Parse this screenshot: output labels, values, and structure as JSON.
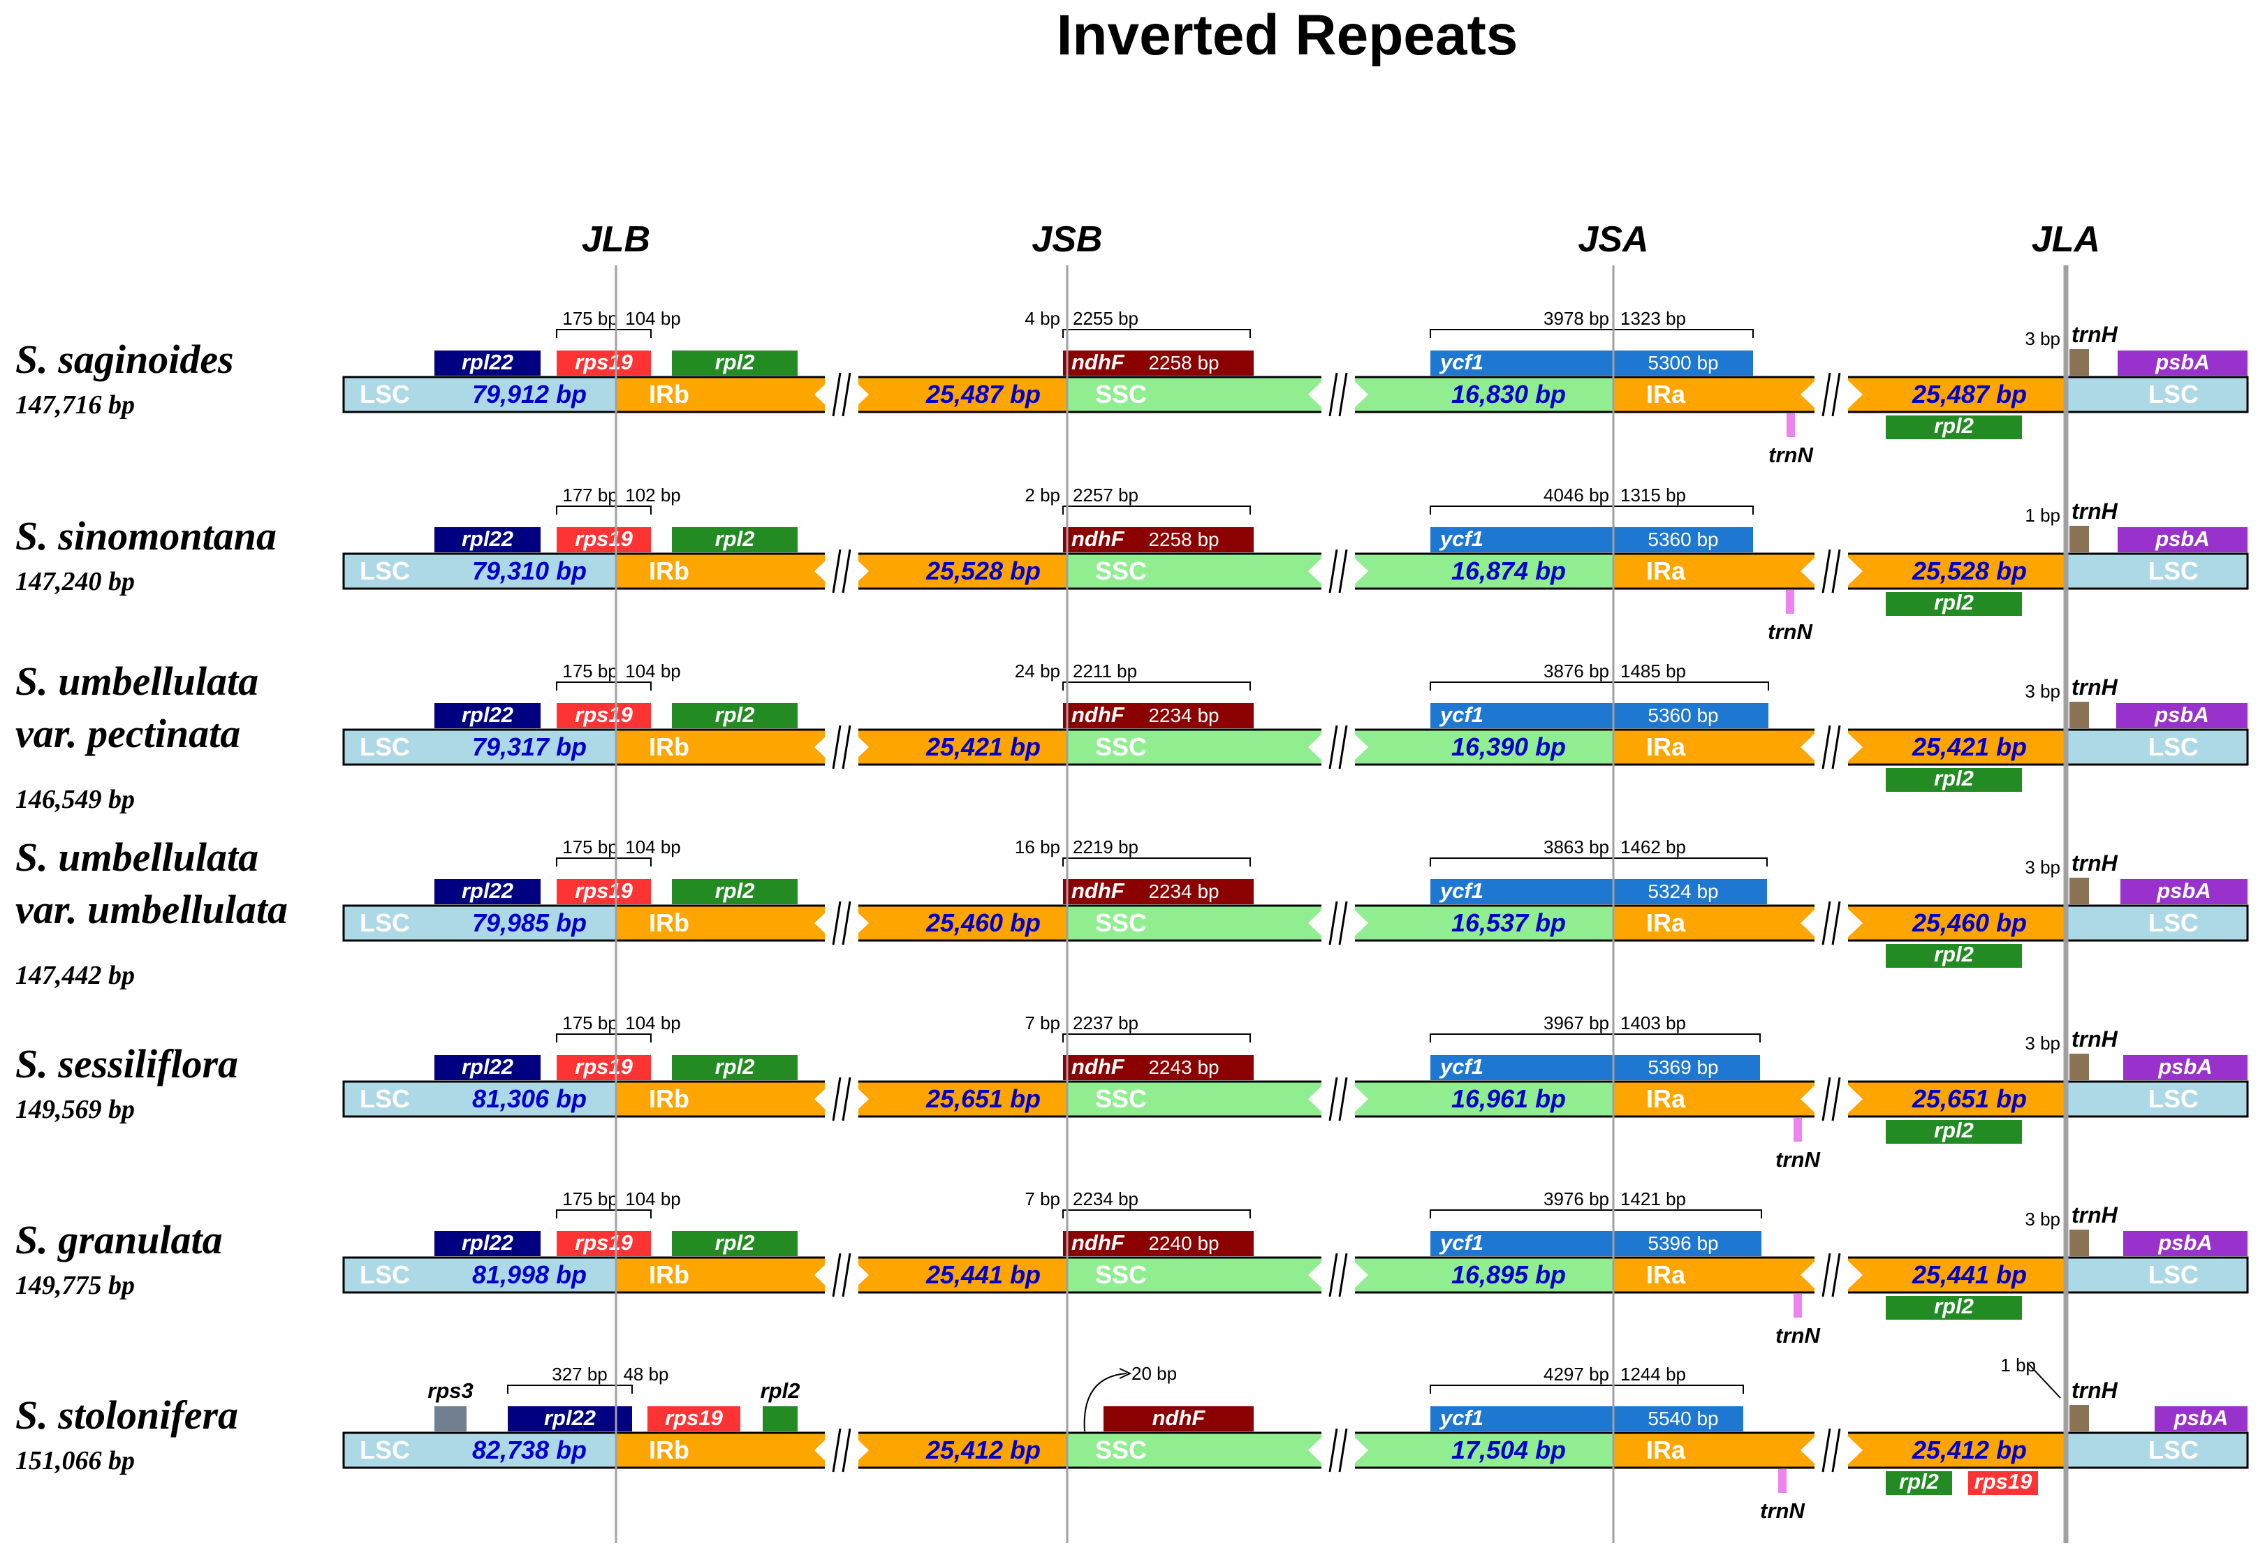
{
  "title": "Inverted Repeats",
  "junctions": [
    "JLB",
    "JSB",
    "JSA",
    "JLA"
  ],
  "colors": {
    "LSC": "#add8e6",
    "IR": "#ffa500",
    "SSC": "#90ee90",
    "rpl22": "#000080",
    "rps19": "#ff3333",
    "rpl2": "#228b22",
    "ndhF": "#8b0000",
    "ycf1": "#1e78d2",
    "trnH": "#8b7355",
    "psbA": "#9932cc",
    "trnN": "#ee82ee",
    "rps3": "#708090",
    "sizeText": "#0000cc"
  },
  "rows": [
    {
      "species": [
        "S. saginoides"
      ],
      "genome": "147,716 bp",
      "lsc": "79,912 bp",
      "irb": "25,487 bp",
      "ssc": "16,830 bp",
      "ira": "25,487 bp",
      "seg_labels": [
        "LSC",
        "IRb",
        "SSC",
        "IRa",
        "LSC"
      ],
      "jlb": {
        "left": "175 bp",
        "right": "104 bp",
        "genes": [
          "rpl22",
          "rps19",
          "rpl2"
        ]
      },
      "jsb": {
        "left": "4 bp",
        "right": "2255 bp",
        "gene": "ndhF",
        "size": "2258 bp"
      },
      "jsa": {
        "left": "3978 bp",
        "right": "1323 bp",
        "gene": "ycf1",
        "size": "5300 bp",
        "trn": "trnN"
      },
      "jla": {
        "dist": "3 bp",
        "genes": [
          "trnH",
          "psbA",
          "rpl2"
        ]
      }
    },
    {
      "species": [
        "S. sinomontana"
      ],
      "genome": "147,240 bp",
      "lsc": "79,310 bp",
      "irb": "25,528 bp",
      "ssc": "16,874 bp",
      "ira": "25,528 bp",
      "seg_labels": [
        "LSC",
        "IRb",
        "SSC",
        "IRa",
        "LSC"
      ],
      "jlb": {
        "left": "177 bp",
        "right": "102 bp",
        "genes": [
          "rpl22",
          "rps19",
          "rpl2"
        ]
      },
      "jsb": {
        "left": "2 bp",
        "right": "2257 bp",
        "gene": "ndhF",
        "size": "2258 bp"
      },
      "jsa": {
        "left": "4046 bp",
        "right": "1315 bp",
        "gene": "ycf1",
        "size": "5360 bp",
        "trn": "trnN"
      },
      "jla": {
        "dist": "1 bp",
        "genes": [
          "trnH",
          "psbA",
          "rpl2"
        ]
      }
    },
    {
      "species": [
        "S. umbellulata",
        "var. pectinata"
      ],
      "genome": "146,549 bp",
      "lsc": "79,317 bp",
      "irb": "25,421 bp",
      "ssc": "16,390 bp",
      "ira": "25,421 bp",
      "seg_labels": [
        "LSC",
        "IRb",
        "SSC",
        "IRa",
        "LSC"
      ],
      "jlb": {
        "left": "175 bp",
        "right": "104 bp",
        "genes": [
          "rpl22",
          "rps19",
          "rpl2"
        ]
      },
      "jsb": {
        "left": "24 bp",
        "right": "2211 bp",
        "gene": "ndhF",
        "size": "2234 bp"
      },
      "jsa": {
        "left": "3876 bp",
        "right": "1485 bp",
        "gene": "ycf1",
        "size": "5360 bp"
      },
      "jla": {
        "dist": "3 bp",
        "genes": [
          "trnH",
          "psbA",
          "rpl2"
        ]
      }
    },
    {
      "species": [
        "S. umbellulata",
        "var. umbellulata"
      ],
      "genome": "147,442 bp",
      "lsc": "79,985 bp",
      "irb": "25,460 bp",
      "ssc": "16,537 bp",
      "ira": "25,460 bp",
      "seg_labels": [
        "LSC",
        "IRb",
        "SSC",
        "IRa",
        "LSC"
      ],
      "jlb": {
        "left": "175 bp",
        "right": "104 bp",
        "genes": [
          "rpl22",
          "rps19",
          "rpl2"
        ]
      },
      "jsb": {
        "left": "16 bp",
        "right": "2219 bp",
        "gene": "ndhF",
        "size": "2234 bp"
      },
      "jsa": {
        "left": "3863 bp",
        "right": "1462 bp",
        "gene": "ycf1",
        "size": "5324 bp"
      },
      "jla": {
        "dist": "3 bp",
        "genes": [
          "trnH",
          "psbA",
          "rpl2"
        ]
      }
    },
    {
      "species": [
        "S. sessiliflora"
      ],
      "genome": "149,569 bp",
      "lsc": "81,306 bp",
      "irb": "25,651 bp",
      "ssc": "16,961 bp",
      "ira": "25,651 bp",
      "seg_labels": [
        "LSC",
        "IRb",
        "SSC",
        "IRa",
        "LSC"
      ],
      "jlb": {
        "left": "175 bp",
        "right": "104 bp",
        "genes": [
          "rpl22",
          "rps19",
          "rpl2"
        ]
      },
      "jsb": {
        "left": "7 bp",
        "right": "2237 bp",
        "gene": "ndhF",
        "size": "2243 bp"
      },
      "jsa": {
        "left": "3967 bp",
        "right": "1403 bp",
        "gene": "ycf1",
        "size": "5369 bp",
        "trn": "trnN"
      },
      "jla": {
        "dist": "3 bp",
        "genes": [
          "trnH",
          "psbA",
          "rpl2"
        ]
      }
    },
    {
      "species": [
        "S. granulata"
      ],
      "genome": "149,775 bp",
      "lsc": "81,998 bp",
      "irb": "25,441 bp",
      "ssc": "16,895 bp",
      "ira": "25,441 bp",
      "seg_labels": [
        "LSC",
        "IRb",
        "SSC",
        "IRa",
        "LSC"
      ],
      "jlb": {
        "left": "175 bp",
        "right": "104 bp",
        "genes": [
          "rpl22",
          "rps19",
          "rpl2"
        ]
      },
      "jsb": {
        "left": "7 bp",
        "right": "2234 bp",
        "gene": "ndhF",
        "size": "2240 bp"
      },
      "jsa": {
        "left": "3976 bp",
        "right": "1421 bp",
        "gene": "ycf1",
        "size": "5396 bp",
        "trn": "trnN"
      },
      "jla": {
        "dist": "3 bp",
        "genes": [
          "trnH",
          "psbA",
          "rpl2"
        ]
      }
    },
    {
      "species": [
        "S. stolonifera"
      ],
      "genome": "151,066 bp",
      "lsc": "82,738 bp",
      "irb": "25,412 bp",
      "ssc": "17,504 bp",
      "ira": "25,412 bp",
      "seg_labels": [
        "LSC",
        "IRb",
        "SSC",
        "IRa",
        "LSC"
      ],
      "jlb": {
        "left": "327 bp",
        "right": "48 bp",
        "genes": [
          "rps3",
          "rpl22",
          "rps19",
          "rpl2"
        ]
      },
      "jsb": {
        "dist": "20 bp",
        "gene": "ndhF"
      },
      "jsa": {
        "left": "4297 bp",
        "right": "1244 bp",
        "gene": "ycf1",
        "size": "5540 bp",
        "trn": "trnN"
      },
      "jla": {
        "dist": "1 bp",
        "genes": [
          "trnH",
          "psbA",
          "rpl2",
          "rps19"
        ]
      }
    }
  ]
}
